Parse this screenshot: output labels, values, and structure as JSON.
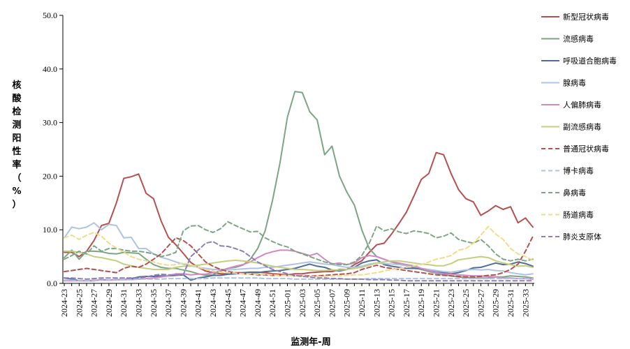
{
  "chart_data": {
    "type": "line",
    "xlabel": "监测年-周",
    "ylabel": "核酸检测阳性率（%）",
    "ylim": [
      0,
      50
    ],
    "yticks": [
      "0.0",
      "10.0",
      "20.0",
      "30.0",
      "40.0",
      "50.0"
    ],
    "grid": false,
    "legend_position": "right",
    "x": [
      "2024-23",
      "2024-24",
      "2024-25",
      "2024-26",
      "2024-27",
      "2024-28",
      "2024-29",
      "2024-30",
      "2024-31",
      "2024-32",
      "2024-33",
      "2024-34",
      "2024-35",
      "2024-36",
      "2024-37",
      "2024-38",
      "2024-39",
      "2024-40",
      "2024-41",
      "2024-42",
      "2024-43",
      "2024-44",
      "2024-45",
      "2024-46",
      "2024-47",
      "2024-48",
      "2024-49",
      "2024-50",
      "2024-51",
      "2024-52",
      "2025-01",
      "2025-02",
      "2025-03",
      "2025-04",
      "2025-05",
      "2025-06",
      "2025-07",
      "2025-08",
      "2025-09",
      "2025-10",
      "2025-11",
      "2025-12",
      "2025-13",
      "2025-14",
      "2025-15",
      "2025-16",
      "2025-17",
      "2025-18",
      "2025-19",
      "2025-20",
      "2025-21",
      "2025-22",
      "2025-23",
      "2025-24",
      "2025-25",
      "2025-26",
      "2025-27",
      "2025-28",
      "2025-29",
      "2025-30",
      "2025-31",
      "2025-32",
      "2025-33",
      "2025-34"
    ],
    "x_tick_labels": [
      "2024-23",
      "2024-25",
      "2024-27",
      "2024-29",
      "2024-31",
      "2024-33",
      "2024-35",
      "2024-37",
      "2024-39",
      "2024-41",
      "2024-43",
      "2024-45",
      "2024-47",
      "2024-49",
      "2024-51",
      "2025-01",
      "2025-03",
      "2025-05",
      "2025-07",
      "2025-09",
      "2025-11",
      "2025-13",
      "2025-15",
      "2025-17",
      "2025-19",
      "2025-21",
      "2025-23",
      "2025-25",
      "2025-27",
      "2025-29",
      "2025-31",
      "2025-33"
    ],
    "series": [
      {
        "name": "新型冠状病毒",
        "color": "#b5504f",
        "dash": false,
        "values": [
          5.8,
          5.8,
          5.0,
          6.0,
          8.0,
          10.8,
          11.2,
          15.0,
          19.6,
          19.9,
          20.4,
          16.8,
          15.8,
          11.7,
          8.6,
          7.2,
          5.6,
          3.9,
          3.0,
          2.3,
          2.0,
          1.8,
          1.8,
          2.0,
          2.0,
          2.1,
          2.1,
          2.0,
          1.8,
          1.7,
          1.6,
          1.8,
          1.8,
          2.0,
          2.1,
          2.2,
          2.2,
          2.6,
          2.6,
          3.5,
          4.2,
          5.8,
          7.2,
          7.5,
          9.2,
          11.2,
          13.3,
          16.3,
          19.4,
          20.5,
          24.4,
          24.0,
          20.5,
          17.5,
          15.8,
          15.2,
          12.7,
          13.5,
          14.5,
          13.8,
          14.3,
          11.3,
          12.2,
          10.5
        ]
      },
      {
        "name": "流感病毒",
        "color": "#7da585",
        "dash": false,
        "values": [
          4.8,
          6.2,
          4.5,
          6.0,
          6.0,
          5.9,
          5.6,
          5.5,
          5.8,
          5.7,
          5.6,
          4.5,
          3.5,
          3.0,
          2.8,
          2.8,
          2.5,
          2.2,
          1.8,
          1.5,
          1.6,
          2.3,
          2.8,
          3.0,
          3.4,
          4.5,
          6.5,
          9.8,
          15.5,
          22.5,
          31.0,
          35.8,
          35.6,
          32.0,
          30.5,
          24.0,
          25.6,
          20.0,
          17.0,
          14.6,
          10.0,
          6.5,
          5.0,
          4.5,
          4.0,
          3.6,
          3.3,
          3.0,
          2.6,
          2.2,
          1.9,
          1.6,
          1.4,
          1.2,
          1.1,
          1.0,
          1.0,
          1.0,
          1.2,
          1.2,
          1.4,
          1.3,
          1.2,
          1.0
        ]
      },
      {
        "name": "呼吸道合胞病毒",
        "color": "#4f6b96",
        "dash": false,
        "values": [
          1.0,
          0.8,
          0.5,
          0.5,
          0.5,
          0.7,
          0.6,
          0.7,
          0.7,
          0.9,
          1.2,
          1.3,
          1.3,
          1.4,
          1.4,
          1.5,
          1.6,
          0.6,
          1.0,
          1.2,
          1.5,
          1.5,
          1.7,
          1.8,
          1.9,
          2.0,
          2.0,
          2.2,
          2.3,
          2.4,
          2.6,
          2.8,
          3.2,
          3.6,
          3.2,
          3.0,
          2.5,
          2.3,
          2.6,
          3.0,
          3.8,
          4.2,
          4.4,
          3.5,
          3.2,
          3.0,
          2.8,
          2.8,
          2.7,
          2.5,
          2.3,
          2.0,
          1.8,
          2.0,
          2.4,
          2.9,
          3.0,
          3.4,
          3.8,
          3.5,
          3.6,
          4.0,
          3.7,
          3.2
        ]
      },
      {
        "name": "腺病毒",
        "color": "#aec3e3",
        "dash": false,
        "values": [
          8.5,
          10.5,
          10.2,
          10.5,
          11.3,
          10.0,
          11.0,
          10.8,
          8.5,
          8.6,
          6.5,
          6.5,
          5.5,
          4.9,
          4.5,
          4.0,
          3.6,
          3.3,
          3.0,
          2.8,
          2.6,
          2.6,
          2.5,
          2.6,
          2.7,
          2.8,
          2.8,
          3.0,
          3.0,
          3.2,
          3.4,
          3.6,
          3.8,
          4.0,
          3.8,
          3.6,
          3.5,
          3.2,
          3.0,
          3.0,
          3.2,
          3.6,
          3.8,
          3.7,
          3.6,
          3.5,
          3.3,
          3.2,
          2.8,
          2.6,
          2.4,
          2.2,
          2.1,
          2.3,
          2.5,
          2.6,
          2.5,
          2.6,
          2.4,
          2.3,
          2.0,
          1.8,
          1.6,
          1.8
        ]
      },
      {
        "name": "人偏肺病毒",
        "color": "#d088bf",
        "dash": false,
        "values": [
          0.5,
          0.5,
          0.5,
          0.5,
          0.6,
          0.6,
          0.6,
          0.7,
          0.7,
          0.7,
          0.8,
          0.9,
          1.0,
          1.2,
          1.4,
          1.8,
          1.8,
          1.6,
          1.7,
          1.7,
          2.0,
          2.4,
          2.8,
          3.2,
          3.5,
          4.0,
          4.8,
          5.5,
          5.9,
          6.2,
          6.2,
          6.0,
          5.6,
          5.2,
          5.6,
          4.5,
          3.6,
          3.8,
          3.5,
          3.8,
          4.8,
          5.2,
          5.0,
          4.5,
          4.0,
          3.8,
          3.5,
          3.3,
          2.8,
          2.4,
          2.0,
          1.8,
          1.7,
          1.6,
          1.5,
          1.4,
          1.4,
          1.3,
          1.2,
          1.0,
          1.0,
          0.9,
          0.9,
          0.8
        ]
      },
      {
        "name": "副流感病毒",
        "color": "#c4cf7c",
        "dash": false,
        "values": [
          6.0,
          6.0,
          5.8,
          5.5,
          5.0,
          4.8,
          4.5,
          4.2,
          3.6,
          3.3,
          3.0,
          2.8,
          2.6,
          2.6,
          2.6,
          3.0,
          3.2,
          3.2,
          3.4,
          3.6,
          3.8,
          4.0,
          4.2,
          4.3,
          4.2,
          4.0,
          3.8,
          3.5,
          3.2,
          3.0,
          2.8,
          2.6,
          2.6,
          2.5,
          2.4,
          2.4,
          2.5,
          2.5,
          2.6,
          2.8,
          3.0,
          3.4,
          3.8,
          4.0,
          4.2,
          4.2,
          4.0,
          3.8,
          3.6,
          3.5,
          3.3,
          3.3,
          3.7,
          4.4,
          4.6,
          4.8,
          5.0,
          4.8,
          4.2,
          3.8,
          3.5,
          3.2,
          3.3,
          3.0
        ]
      },
      {
        "name": "普通冠状病毒",
        "color": "#b5504f",
        "dash": true,
        "values": [
          2.2,
          2.4,
          2.6,
          2.8,
          2.6,
          2.4,
          2.2,
          2.0,
          2.8,
          3.2,
          3.0,
          3.6,
          4.5,
          5.5,
          7.0,
          8.5,
          8.0,
          7.0,
          5.5,
          4.0,
          3.2,
          2.6,
          2.2,
          2.0,
          1.8,
          1.7,
          1.6,
          1.6,
          1.5,
          1.5,
          1.5,
          1.4,
          1.4,
          1.4,
          1.4,
          1.5,
          1.6,
          1.7,
          1.8,
          2.0,
          2.6,
          3.0,
          3.4,
          3.0,
          2.8,
          2.6,
          2.4,
          2.2,
          2.0,
          1.8,
          1.6,
          1.5,
          1.4,
          1.3,
          1.2,
          1.2,
          1.3,
          1.5,
          1.6,
          2.0,
          2.6,
          3.6,
          6.0,
          8.8
        ]
      },
      {
        "name": "博卡病毒",
        "color": "#aec3e3",
        "dash": true,
        "values": [
          0.6,
          0.6,
          0.5,
          0.5,
          0.5,
          0.6,
          0.6,
          0.6,
          0.7,
          0.7,
          0.8,
          0.8,
          0.8,
          0.8,
          0.9,
          0.9,
          0.9,
          0.9,
          0.9,
          0.9,
          1.0,
          1.0,
          1.0,
          1.0,
          1.0,
          1.0,
          1.0,
          0.9,
          0.9,
          0.9,
          0.9,
          0.8,
          0.8,
          0.8,
          0.8,
          0.8,
          0.8,
          0.8,
          0.8,
          0.8,
          0.8,
          0.9,
          0.9,
          0.9,
          0.9,
          0.9,
          0.9,
          0.9,
          0.9,
          0.9,
          0.9,
          0.9,
          0.9,
          0.9,
          0.9,
          0.9,
          0.9,
          0.9,
          0.9,
          0.9,
          0.9,
          0.9,
          0.9,
          0.9
        ]
      },
      {
        "name": "鼻病毒",
        "color": "#7da585",
        "dash": true,
        "values": [
          4.5,
          5.2,
          6.0,
          5.5,
          7.0,
          6.0,
          6.5,
          6.5,
          6.2,
          6.0,
          6.0,
          5.8,
          5.5,
          5.0,
          5.3,
          5.8,
          9.8,
          10.7,
          10.8,
          10.0,
          9.5,
          10.2,
          11.5,
          10.8,
          10.2,
          9.6,
          9.7,
          8.5,
          7.8,
          7.2,
          6.8,
          6.0,
          5.5,
          5.0,
          4.5,
          4.0,
          3.7,
          3.5,
          3.5,
          4.0,
          5.2,
          7.5,
          10.7,
          9.8,
          10.2,
          9.6,
          9.3,
          9.8,
          9.6,
          9.3,
          8.5,
          8.8,
          9.4,
          8.2,
          7.8,
          7.5,
          8.2,
          7.0,
          5.5,
          4.5,
          4.2,
          4.5,
          4.2,
          4.5
        ]
      },
      {
        "name": "肠道病毒",
        "color": "#f0dc8c",
        "dash": true,
        "values": [
          8.5,
          9.0,
          8.2,
          9.0,
          9.5,
          8.8,
          7.5,
          6.6,
          5.8,
          5.0,
          4.5,
          4.2,
          4.0,
          3.6,
          3.4,
          3.5,
          3.8,
          3.5,
          3.0,
          2.6,
          2.3,
          2.1,
          2.0,
          1.9,
          1.8,
          1.8,
          1.7,
          1.7,
          1.6,
          1.5,
          1.5,
          1.4,
          1.3,
          1.3,
          1.3,
          1.3,
          1.4,
          1.4,
          1.5,
          1.6,
          1.6,
          1.8,
          2.0,
          2.3,
          2.6,
          2.8,
          3.0,
          3.3,
          3.5,
          4.0,
          4.5,
          4.8,
          5.2,
          6.2,
          6.5,
          7.5,
          9.0,
          10.6,
          9.2,
          8.2,
          6.5,
          5.5,
          5.0,
          4.3
        ]
      },
      {
        "name": "肺炎支原体",
        "color": "#8a7fb8",
        "dash": true,
        "values": [
          1.0,
          1.0,
          0.9,
          0.8,
          0.9,
          1.0,
          1.0,
          1.0,
          1.0,
          1.0,
          1.0,
          1.2,
          1.5,
          1.7,
          1.6,
          1.6,
          1.6,
          5.0,
          6.2,
          7.5,
          7.8,
          7.0,
          6.9,
          6.5,
          6.0,
          5.0,
          4.0,
          3.3,
          2.6,
          2.2,
          1.8,
          1.5,
          1.3,
          1.2,
          1.0,
          1.0,
          0.9,
          0.9,
          0.8,
          0.8,
          0.8,
          0.7,
          0.7,
          0.7,
          0.6,
          0.6,
          0.5,
          0.5,
          0.5,
          0.5,
          0.5,
          0.5,
          0.5,
          0.5,
          0.5,
          0.5,
          0.5,
          0.5,
          0.5,
          0.5,
          0.5,
          0.5,
          0.5,
          0.5
        ]
      }
    ]
  }
}
